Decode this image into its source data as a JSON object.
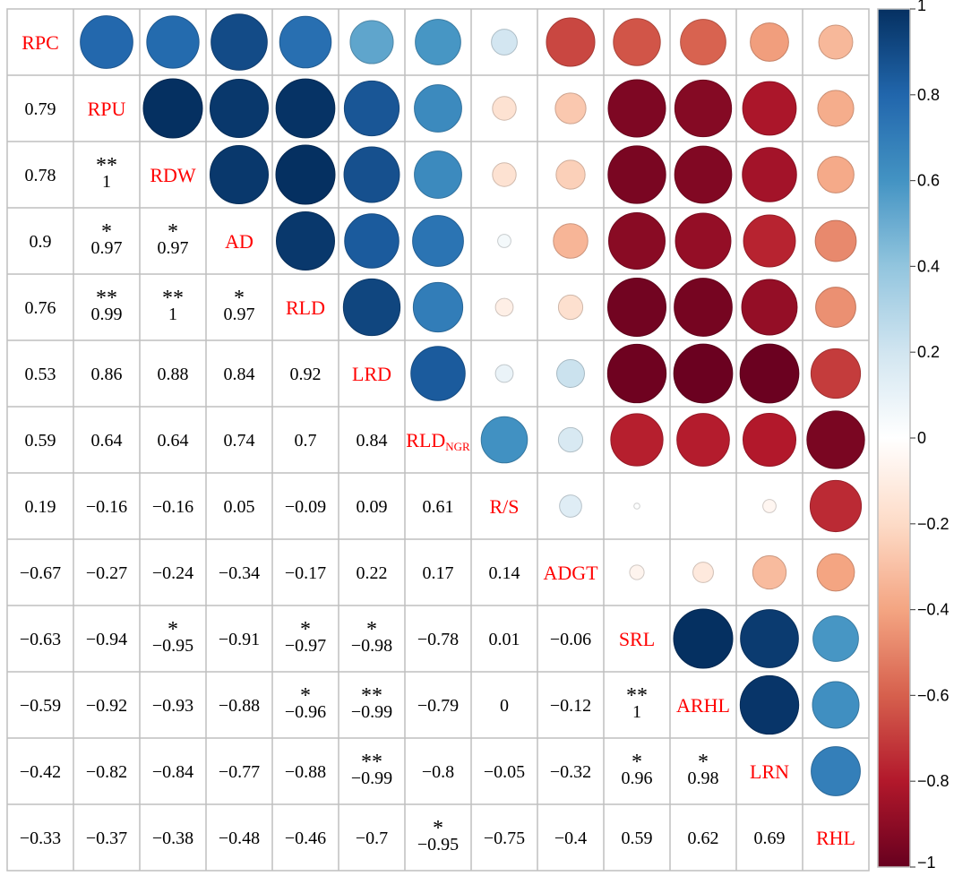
{
  "chart_data": {
    "type": "heatmap",
    "subtype": "correlation-matrix",
    "variables": [
      {
        "name": "RPC"
      },
      {
        "name": "RPU"
      },
      {
        "name": "RDW"
      },
      {
        "name": "AD"
      },
      {
        "name": "RLD"
      },
      {
        "name": "LRD"
      },
      {
        "name": "RLD",
        "subscript": "NGR"
      },
      {
        "name": "R/S"
      },
      {
        "name": "ADGT"
      },
      {
        "name": "SRL"
      },
      {
        "name": "ARHL"
      },
      {
        "name": "LRN"
      },
      {
        "name": "RHL"
      }
    ],
    "lower_triangle_display": "numbers",
    "upper_triangle_display": "circles",
    "matrix": [
      [
        1,
        0.79,
        0.78,
        0.9,
        0.76,
        0.53,
        0.59,
        0.19,
        -0.67,
        -0.63,
        -0.59,
        -0.42,
        -0.33
      ],
      [
        0.79,
        1,
        1,
        0.97,
        0.99,
        0.86,
        0.64,
        -0.16,
        -0.27,
        -0.94,
        -0.92,
        -0.82,
        -0.37
      ],
      [
        0.78,
        1,
        1,
        0.97,
        1,
        0.88,
        0.64,
        -0.16,
        -0.24,
        -0.95,
        -0.93,
        -0.84,
        -0.38
      ],
      [
        0.9,
        0.97,
        0.97,
        1,
        0.97,
        0.84,
        0.74,
        0.05,
        -0.34,
        -0.91,
        -0.88,
        -0.77,
        -0.48
      ],
      [
        0.76,
        0.99,
        1,
        0.97,
        1,
        0.92,
        0.7,
        -0.09,
        -0.17,
        -0.97,
        -0.96,
        -0.88,
        -0.46
      ],
      [
        0.53,
        0.86,
        0.88,
        0.84,
        0.92,
        1,
        0.84,
        0.09,
        0.22,
        -0.98,
        -0.99,
        -0.99,
        -0.7
      ],
      [
        0.59,
        0.64,
        0.64,
        0.74,
        0.7,
        0.84,
        1,
        0.61,
        0.17,
        -0.78,
        -0.79,
        -0.8,
        -0.95
      ],
      [
        0.19,
        -0.16,
        -0.16,
        0.05,
        -0.09,
        0.09,
        0.61,
        1,
        0.14,
        0.01,
        0,
        -0.05,
        -0.75
      ],
      [
        -0.67,
        -0.27,
        -0.24,
        -0.34,
        -0.17,
        0.22,
        0.17,
        0.14,
        1,
        -0.06,
        -0.12,
        -0.32,
        -0.4
      ],
      [
        -0.63,
        -0.94,
        -0.95,
        -0.91,
        -0.97,
        -0.98,
        -0.78,
        0.01,
        -0.06,
        1,
        1,
        0.96,
        0.59
      ],
      [
        -0.59,
        -0.92,
        -0.93,
        -0.88,
        -0.96,
        -0.99,
        -0.79,
        0,
        -0.12,
        1,
        1,
        0.98,
        0.62
      ],
      [
        -0.42,
        -0.82,
        -0.84,
        -0.77,
        -0.88,
        -0.99,
        -0.8,
        -0.05,
        -0.32,
        0.96,
        0.98,
        1,
        0.69
      ],
      [
        -0.33,
        -0.37,
        -0.38,
        -0.48,
        -0.46,
        -0.7,
        -0.95,
        -0.75,
        -0.4,
        0.59,
        0.62,
        0.69,
        1
      ]
    ],
    "lower_labels": [
      [],
      [
        "0.79"
      ],
      [
        "0.78",
        "1"
      ],
      [
        "0.9",
        "0.97",
        "0.97"
      ],
      [
        "0.76",
        "0.99",
        "1",
        "0.97"
      ],
      [
        "0.53",
        "0.86",
        "0.88",
        "0.84",
        "0.92"
      ],
      [
        "0.59",
        "0.64",
        "0.64",
        "0.74",
        "0.7",
        "0.84"
      ],
      [
        "0.19",
        "−0.16",
        "−0.16",
        "0.05",
        "−0.09",
        "0.09",
        "0.61"
      ],
      [
        "−0.67",
        "−0.27",
        "−0.24",
        "−0.34",
        "−0.17",
        "0.22",
        "0.17",
        "0.14"
      ],
      [
        "−0.63",
        "−0.94",
        "−0.95",
        "−0.91",
        "−0.97",
        "−0.98",
        "−0.78",
        "0.01",
        "−0.06"
      ],
      [
        "−0.59",
        "−0.92",
        "−0.93",
        "−0.88",
        "−0.96",
        "−0.99",
        "−0.79",
        "0",
        "−0.12",
        "1"
      ],
      [
        "−0.42",
        "−0.82",
        "−0.84",
        "−0.77",
        "−0.88",
        "−0.99",
        "−0.8",
        "−0.05",
        "−0.32",
        "0.96",
        "0.98"
      ],
      [
        "−0.33",
        "−0.37",
        "−0.38",
        "−0.48",
        "−0.46",
        "−0.7",
        "−0.95",
        "−0.75",
        "−0.4",
        "0.59",
        "0.62",
        "0.69"
      ]
    ],
    "significance": [
      {
        "row": 2,
        "col": 1,
        "stars": "**"
      },
      {
        "row": 3,
        "col": 1,
        "stars": "*"
      },
      {
        "row": 3,
        "col": 2,
        "stars": "*"
      },
      {
        "row": 4,
        "col": 1,
        "stars": "**"
      },
      {
        "row": 4,
        "col": 2,
        "stars": "**"
      },
      {
        "row": 4,
        "col": 3,
        "stars": "*"
      },
      {
        "row": 9,
        "col": 2,
        "stars": "*"
      },
      {
        "row": 9,
        "col": 4,
        "stars": "*"
      },
      {
        "row": 9,
        "col": 5,
        "stars": "*"
      },
      {
        "row": 10,
        "col": 4,
        "stars": "*"
      },
      {
        "row": 10,
        "col": 5,
        "stars": "**"
      },
      {
        "row": 10,
        "col": 9,
        "stars": "**"
      },
      {
        "row": 11,
        "col": 5,
        "stars": "**"
      },
      {
        "row": 11,
        "col": 9,
        "stars": "*"
      },
      {
        "row": 11,
        "col": 10,
        "stars": "*"
      },
      {
        "row": 12,
        "col": 6,
        "stars": "*"
      }
    ],
    "colorbar": {
      "range": [
        -1,
        1
      ],
      "ticks": [
        1,
        0.8,
        0.6,
        0.4,
        0.2,
        0,
        -0.2,
        -0.4,
        -0.6,
        -0.8,
        -1
      ],
      "tick_labels": [
        "1",
        "0.8",
        "0.6",
        "0.4",
        "0.2",
        "0",
        "−0.2",
        "−0.4",
        "−0.6",
        "−0.8",
        "−1"
      ],
      "position": "right"
    },
    "colors": {
      "neg_end": "#67001f",
      "mid": "#ffffff",
      "pos_end": "#053061",
      "label_color": "#ff0000",
      "grid": "#bfbfbf"
    }
  }
}
